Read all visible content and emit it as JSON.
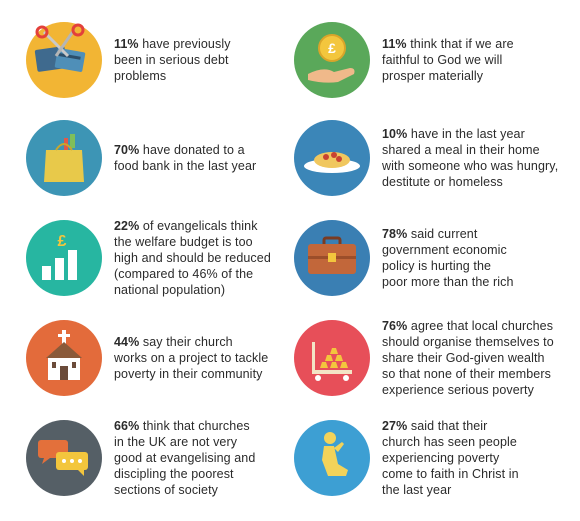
{
  "items": [
    {
      "stat": "11%",
      "lines": [
        " have previously",
        "been in serious debt",
        "problems"
      ],
      "color": "#f2b534",
      "icon": "scissors-cards-icon"
    },
    {
      "stat": "11%",
      "lines": [
        " think that if we are",
        "faithful to God we will",
        "prosper materially"
      ],
      "color": "#5aa85a",
      "icon": "coin-hand-icon"
    },
    {
      "stat": "70%",
      "lines": [
        " have donated to a",
        "food bank in the last year"
      ],
      "color": "#3d95b5",
      "icon": "grocery-bag-icon"
    },
    {
      "stat": "10%",
      "lines": [
        " have in the last year",
        "shared a meal in their home",
        "with someone who was hungry,",
        "destitute or homeless"
      ],
      "color": "#3b86b8",
      "icon": "pasta-plate-icon"
    },
    {
      "stat": "22%",
      "lines": [
        " of evangelicals think",
        "the welfare budget is too",
        "high and should be reduced",
        "(compared to 46% of the",
        "national population)"
      ],
      "color": "#27b6a1",
      "icon": "pound-bar-chart-icon"
    },
    {
      "stat": "78%",
      "lines": [
        " said current",
        "government economic",
        "policy is hurting the",
        "poor more than the rich"
      ],
      "color": "#3a7fb3",
      "icon": "briefcase-icon"
    },
    {
      "stat": "44%",
      "lines": [
        " say their church",
        "works on a project to tackle",
        "poverty in their community"
      ],
      "color": "#e36b3b",
      "icon": "church-icon"
    },
    {
      "stat": "76%",
      "lines": [
        " agree that local churches",
        "should organise themselves to",
        "share their God-given wealth",
        "so that none of their members",
        "experience serious poverty"
      ],
      "color": "#e74f59",
      "icon": "gold-trolley-icon"
    },
    {
      "stat": "66%",
      "lines": [
        " think that churches",
        "in the UK are not very",
        "good at evangelising and",
        "discipling the poorest",
        "sections of society"
      ],
      "color": "#555f66",
      "icon": "speech-bubbles-icon"
    },
    {
      "stat": "27%",
      "lines": [
        " said that their",
        "church has seen people",
        "experiencing poverty",
        "come to faith in Christ in",
        "the last year"
      ],
      "color": "#3d9fd3",
      "icon": "praying-person-icon"
    }
  ]
}
